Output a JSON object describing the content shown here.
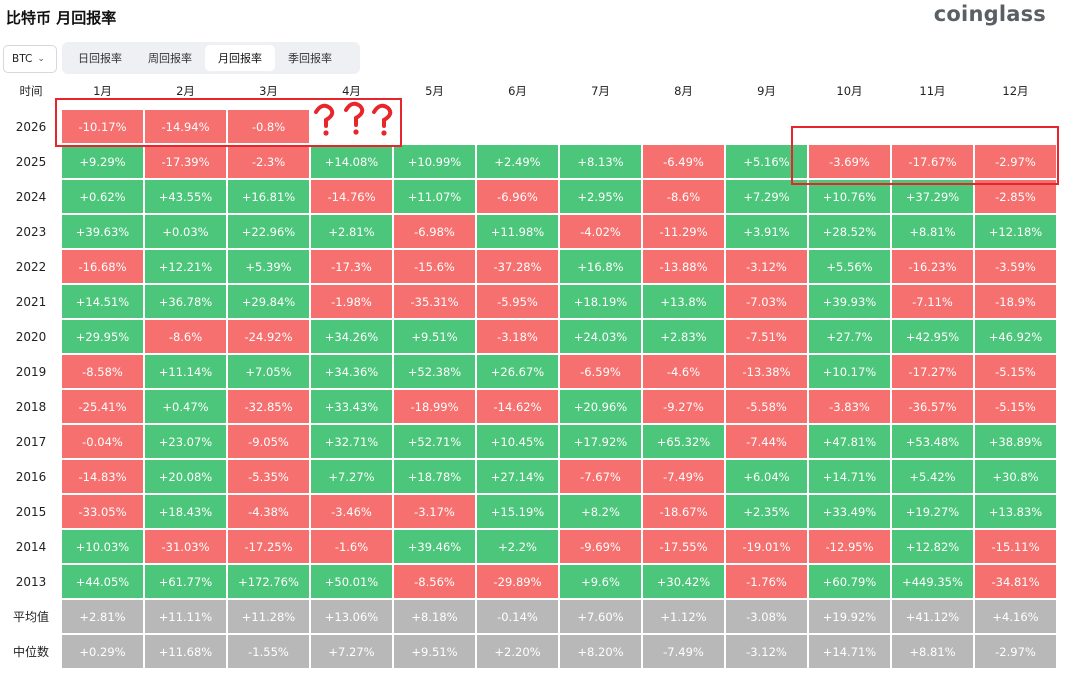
{
  "header": {
    "title": "比特币 月回报率",
    "brand": "coinglass"
  },
  "asset_select": {
    "value": "BTC"
  },
  "tabs": [
    {
      "label": "日回报率",
      "active": false
    },
    {
      "label": "周回报率",
      "active": false
    },
    {
      "label": "月回报率",
      "active": true
    },
    {
      "label": "季回报率",
      "active": false
    }
  ],
  "table": {
    "corner": "时间",
    "months": [
      "1月",
      "2月",
      "3月",
      "4月",
      "5月",
      "6月",
      "7月",
      "8月",
      "9月",
      "10月",
      "11月",
      "12月"
    ],
    "rows": [
      {
        "year": "2026",
        "values": [
          "-10.17%",
          "-14.94%",
          "-0.8%"
        ]
      },
      {
        "year": "2025",
        "values": [
          "+9.29%",
          "-17.39%",
          "-2.3%",
          "+14.08%",
          "+10.99%",
          "+2.49%",
          "+8.13%",
          "-6.49%",
          "+5.16%",
          "-3.69%",
          "-17.67%",
          "-2.97%"
        ]
      },
      {
        "year": "2024",
        "values": [
          "+0.62%",
          "+43.55%",
          "+16.81%",
          "-14.76%",
          "+11.07%",
          "-6.96%",
          "+2.95%",
          "-8.6%",
          "+7.29%",
          "+10.76%",
          "+37.29%",
          "-2.85%"
        ]
      },
      {
        "year": "2023",
        "values": [
          "+39.63%",
          "+0.03%",
          "+22.96%",
          "+2.81%",
          "-6.98%",
          "+11.98%",
          "-4.02%",
          "-11.29%",
          "+3.91%",
          "+28.52%",
          "+8.81%",
          "+12.18%"
        ]
      },
      {
        "year": "2022",
        "values": [
          "-16.68%",
          "+12.21%",
          "+5.39%",
          "-17.3%",
          "-15.6%",
          "-37.28%",
          "+16.8%",
          "-13.88%",
          "-3.12%",
          "+5.56%",
          "-16.23%",
          "-3.59%"
        ]
      },
      {
        "year": "2021",
        "values": [
          "+14.51%",
          "+36.78%",
          "+29.84%",
          "-1.98%",
          "-35.31%",
          "-5.95%",
          "+18.19%",
          "+13.8%",
          "-7.03%",
          "+39.93%",
          "-7.11%",
          "-18.9%"
        ]
      },
      {
        "year": "2020",
        "values": [
          "+29.95%",
          "-8.6%",
          "-24.92%",
          "+34.26%",
          "+9.51%",
          "-3.18%",
          "+24.03%",
          "+2.83%",
          "-7.51%",
          "+27.7%",
          "+42.95%",
          "+46.92%"
        ]
      },
      {
        "year": "2019",
        "values": [
          "-8.58%",
          "+11.14%",
          "+7.05%",
          "+34.36%",
          "+52.38%",
          "+26.67%",
          "-6.59%",
          "-4.6%",
          "-13.38%",
          "+10.17%",
          "-17.27%",
          "-5.15%"
        ]
      },
      {
        "year": "2018",
        "values": [
          "-25.41%",
          "+0.47%",
          "-32.85%",
          "+33.43%",
          "-18.99%",
          "-14.62%",
          "+20.96%",
          "-9.27%",
          "-5.58%",
          "-3.83%",
          "-36.57%",
          "-5.15%"
        ]
      },
      {
        "year": "2017",
        "values": [
          "-0.04%",
          "+23.07%",
          "-9.05%",
          "+32.71%",
          "+52.71%",
          "+10.45%",
          "+17.92%",
          "+65.32%",
          "-7.44%",
          "+47.81%",
          "+53.48%",
          "+38.89%"
        ]
      },
      {
        "year": "2016",
        "values": [
          "-14.83%",
          "+20.08%",
          "-5.35%",
          "+7.27%",
          "+18.78%",
          "+27.14%",
          "-7.67%",
          "-7.49%",
          "+6.04%",
          "+14.71%",
          "+5.42%",
          "+30.8%"
        ]
      },
      {
        "year": "2015",
        "values": [
          "-33.05%",
          "+18.43%",
          "-4.38%",
          "-3.46%",
          "-3.17%",
          "+15.19%",
          "+8.2%",
          "-18.67%",
          "+2.35%",
          "+33.49%",
          "+19.27%",
          "+13.83%"
        ]
      },
      {
        "year": "2014",
        "values": [
          "+10.03%",
          "-31.03%",
          "-17.25%",
          "-1.6%",
          "+39.46%",
          "+2.2%",
          "-9.69%",
          "-17.55%",
          "-19.01%",
          "-12.95%",
          "+12.82%",
          "-15.11%"
        ]
      },
      {
        "year": "2013",
        "values": [
          "+44.05%",
          "+61.77%",
          "+172.76%",
          "+50.01%",
          "-8.56%",
          "-29.89%",
          "+9.6%",
          "+30.42%",
          "-1.76%",
          "+60.79%",
          "+449.35%",
          "-34.81%"
        ]
      }
    ],
    "summary_rows": [
      {
        "label": "平均值",
        "values": [
          "+2.81%",
          "+11.11%",
          "+11.28%",
          "+13.06%",
          "+8.18%",
          "-0.14%",
          "+7.60%",
          "+1.12%",
          "-3.08%",
          "+19.92%",
          "+41.12%",
          "+4.16%"
        ]
      },
      {
        "label": "中位数",
        "values": [
          "+0.29%",
          "+11.68%",
          "-1.55%",
          "+7.27%",
          "+9.51%",
          "+2.20%",
          "+8.20%",
          "-7.49%",
          "-3.12%",
          "+14.71%",
          "+8.81%",
          "-2.97%"
        ]
      }
    ]
  },
  "colors": {
    "positive": "#4cc67a",
    "negative": "#f5706e",
    "summary": "#b8b8b8",
    "annotation": "#e8252b"
  }
}
